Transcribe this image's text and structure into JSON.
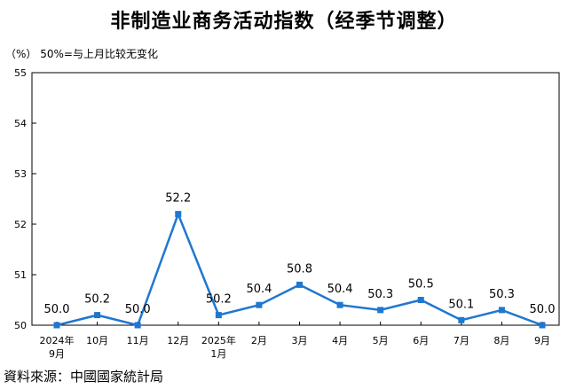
{
  "title": "非制造业商务活动指数（经季节调整）",
  "unit_note": "（%）  50%=与上月比较无变化",
  "source": "資料來源：中國國家統計局",
  "chart_data": {
    "type": "line",
    "categories": [
      "2024年9月",
      "10月",
      "11月",
      "12月",
      "2025年1月",
      "2月",
      "3月",
      "4月",
      "5月",
      "6月",
      "7月",
      "8月",
      "9月"
    ],
    "x_tick_lines": [
      [
        "2024年",
        "9月"
      ],
      [
        "10月"
      ],
      [
        "11月"
      ],
      [
        "12月"
      ],
      [
        "2025年",
        "1月"
      ],
      [
        "2月"
      ],
      [
        "3月"
      ],
      [
        "4月"
      ],
      [
        "5月"
      ],
      [
        "6月"
      ],
      [
        "7月"
      ],
      [
        "8月"
      ],
      [
        "9月"
      ]
    ],
    "values": [
      50.0,
      50.2,
      50.0,
      52.2,
      50.2,
      50.4,
      50.8,
      50.4,
      50.3,
      50.5,
      50.1,
      50.3,
      50.0
    ],
    "data_labels": [
      "50.0",
      "50.2",
      "50.0",
      "52.2",
      "50.2",
      "50.4",
      "50.8",
      "50.4",
      "50.3",
      "50.5",
      "50.1",
      "50.3",
      "50.0"
    ],
    "ylim": [
      50,
      55
    ],
    "yticks": [
      "50",
      "51",
      "52",
      "53",
      "54",
      "55"
    ],
    "line_color": "#1f77d0",
    "grid": false
  }
}
